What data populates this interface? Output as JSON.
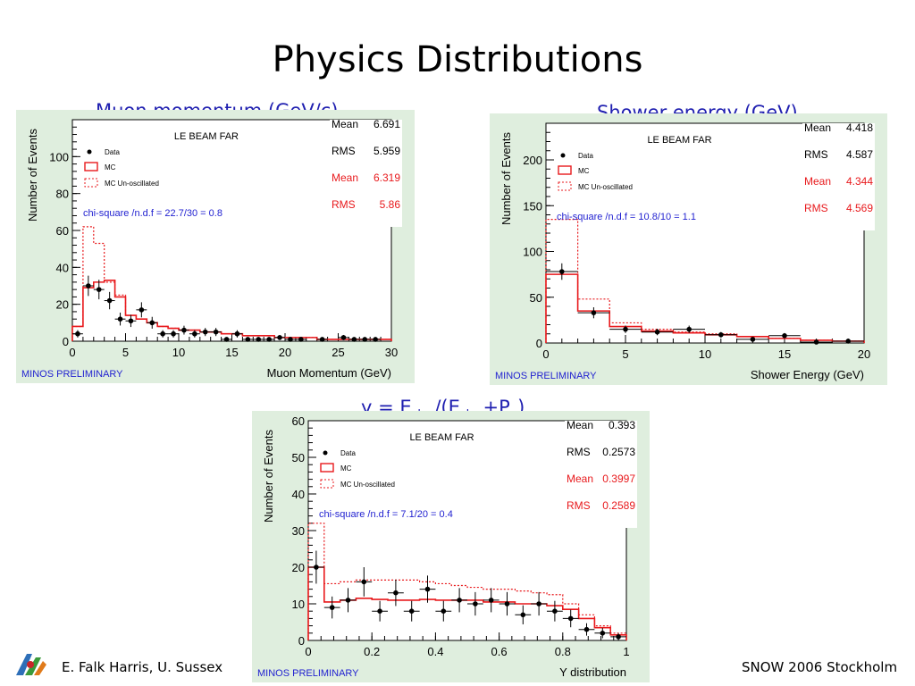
{
  "slide": {
    "title": "Physics Distributions",
    "footer_left": "E. Falk Harris, U. Sussex",
    "footer_right": "SNOW 2006 Stockholm"
  },
  "panels": {
    "muon_title": "Muon momentum (GeV/c)",
    "shower_title": "Shower energy (GeV)",
    "y_title": {
      "y": "y = E",
      "shw1": "shw",
      "mid": "/(E",
      "shw2": "shw",
      "plus": "+P",
      "mu": "μ",
      "close": ")"
    }
  },
  "colors": {
    "data": "#000000",
    "mc": "#e8191c",
    "stat_blue": "#1f1fd0",
    "preliminary": "#1f1fd0",
    "panel_bg": "#dfeede",
    "frame_bg": "#ffffff",
    "title_blue": "#1f1fb0"
  },
  "chart_data": [
    {
      "type": "bar",
      "id": "muon",
      "header": "LE BEAM FAR",
      "preliminary": "MINOS PRELIMINARY",
      "xlabel": "Muon Momentum (GeV)",
      "ylabel": "Number of Events",
      "xlim": [
        0,
        30
      ],
      "ylim": [
        0,
        120
      ],
      "xticks": [
        0,
        5,
        10,
        15,
        20,
        25,
        30
      ],
      "yticks": [
        0,
        20,
        40,
        60,
        80,
        100
      ],
      "legend": [
        "Data",
        "MC",
        "MC Un-oscillated"
      ],
      "chi_square": "chi-square /n.d.f =   22.7/30 =    0.8",
      "stats": [
        {
          "label": "Mean",
          "value": "6.691",
          "color": "black"
        },
        {
          "label": "RMS",
          "value": "5.959",
          "color": "black"
        },
        {
          "label": "Mean",
          "value": "6.319",
          "color": "red"
        },
        {
          "label": "RMS",
          "value": "5.86",
          "color": "red"
        }
      ],
      "bin_edges": [
        0,
        1,
        2,
        3,
        4,
        5,
        6,
        7,
        8,
        9,
        10,
        11,
        12,
        13,
        14,
        15,
        16,
        17,
        18,
        19,
        20,
        21,
        22,
        23,
        24,
        25,
        26,
        27,
        28,
        29,
        30
      ],
      "mc": [
        8,
        29,
        32,
        33,
        24,
        14,
        12,
        10,
        8,
        7,
        6,
        6,
        5,
        5,
        4,
        4,
        3,
        3,
        3,
        2,
        2,
        2,
        2,
        1,
        1,
        1,
        1,
        1,
        1,
        1
      ],
      "mc_unosc": [
        8,
        62,
        53,
        32,
        25,
        14,
        12,
        10,
        8,
        7,
        6,
        6,
        5,
        5,
        4,
        4,
        3,
        3,
        3,
        2,
        2,
        2,
        2,
        1,
        1,
        1,
        1,
        1,
        1,
        1
      ],
      "data_points": [
        {
          "x": 0.5,
          "y": 4,
          "err": 2
        },
        {
          "x": 1.5,
          "y": 30,
          "err": 5.5
        },
        {
          "x": 2.5,
          "y": 28,
          "err": 5.3
        },
        {
          "x": 3.5,
          "y": 22,
          "err": 4.7
        },
        {
          "x": 4.5,
          "y": 12,
          "err": 3.5
        },
        {
          "x": 5.5,
          "y": 11,
          "err": 3.3
        },
        {
          "x": 6.5,
          "y": 17,
          "err": 4.1
        },
        {
          "x": 7.5,
          "y": 10,
          "err": 3.2
        },
        {
          "x": 8.5,
          "y": 4,
          "err": 2
        },
        {
          "x": 9.5,
          "y": 4,
          "err": 2
        },
        {
          "x": 10.5,
          "y": 6,
          "err": 2.4
        },
        {
          "x": 11.5,
          "y": 4,
          "err": 2
        },
        {
          "x": 12.5,
          "y": 5,
          "err": 2.2
        },
        {
          "x": 13.5,
          "y": 5,
          "err": 2.2
        },
        {
          "x": 14.5,
          "y": 1,
          "err": 1
        },
        {
          "x": 15.5,
          "y": 4,
          "err": 2
        },
        {
          "x": 16.5,
          "y": 1,
          "err": 1
        },
        {
          "x": 17.5,
          "y": 1,
          "err": 1
        },
        {
          "x": 18.5,
          "y": 1,
          "err": 1
        },
        {
          "x": 19.5,
          "y": 2,
          "err": 1.4
        },
        {
          "x": 20.5,
          "y": 1,
          "err": 1
        },
        {
          "x": 21.5,
          "y": 1,
          "err": 1
        },
        {
          "x": 23.5,
          "y": 1,
          "err": 1
        },
        {
          "x": 25.5,
          "y": 2,
          "err": 1.4
        },
        {
          "x": 26.5,
          "y": 1,
          "err": 1
        },
        {
          "x": 27.5,
          "y": 1,
          "err": 1
        },
        {
          "x": 28.5,
          "y": 1,
          "err": 1
        }
      ]
    },
    {
      "type": "bar",
      "id": "shower",
      "header": "LE BEAM FAR",
      "preliminary": "MINOS PRELIMINARY",
      "xlabel": "Shower Energy (GeV)",
      "ylabel": "Number of Events",
      "xlim": [
        0,
        20
      ],
      "ylim": [
        0,
        240
      ],
      "xticks": [
        0,
        5,
        10,
        15,
        20
      ],
      "yticks": [
        0,
        50,
        100,
        150,
        200
      ],
      "legend": [
        "Data",
        "MC",
        "MC Un-oscillated"
      ],
      "chi_square": "chi-square /n.d.f =   10.8/10 =    1.1",
      "stats": [
        {
          "label": "Mean",
          "value": "4.418",
          "color": "black"
        },
        {
          "label": "RMS",
          "value": "4.587",
          "color": "black"
        },
        {
          "label": "Mean",
          "value": "4.344",
          "color": "red"
        },
        {
          "label": "RMS",
          "value": "4.569",
          "color": "red"
        }
      ],
      "bin_edges": [
        0,
        2,
        4,
        6,
        8,
        10,
        12,
        14,
        16,
        18,
        20
      ],
      "mc": [
        75,
        35,
        18,
        13,
        11,
        9,
        7,
        5,
        3,
        2
      ],
      "mc_unosc": [
        135,
        48,
        22,
        15,
        12,
        10,
        7,
        5,
        3,
        2
      ],
      "data_points": [
        {
          "x": 1,
          "y": 78,
          "err": 9
        },
        {
          "x": 3,
          "y": 33,
          "err": 6
        },
        {
          "x": 5,
          "y": 15,
          "err": 4
        },
        {
          "x": 7,
          "y": 12,
          "err": 3.5
        },
        {
          "x": 9,
          "y": 15,
          "err": 4
        },
        {
          "x": 11,
          "y": 9,
          "err": 3
        },
        {
          "x": 13,
          "y": 4,
          "err": 2
        },
        {
          "x": 15,
          "y": 8,
          "err": 2.8
        },
        {
          "x": 17,
          "y": 1,
          "err": 1
        },
        {
          "x": 19,
          "y": 2,
          "err": 1.4
        }
      ]
    },
    {
      "type": "bar",
      "id": "ydist",
      "header": "LE BEAM FAR",
      "preliminary": "MINOS PRELIMINARY",
      "xlabel": "Y distribution",
      "ylabel": "Number of Events",
      "xlim": [
        0,
        1
      ],
      "ylim": [
        0,
        60
      ],
      "xticks": [
        0,
        0.2,
        0.4,
        0.6,
        0.8,
        1
      ],
      "yticks": [
        0,
        10,
        20,
        30,
        40,
        50,
        60
      ],
      "legend": [
        "Data",
        "MC",
        "MC Un-oscillated"
      ],
      "chi_square": "chi-square /n.d.f =    7.1/20 =    0.4",
      "stats": [
        {
          "label": "Mean",
          "value": "0.393",
          "color": "black"
        },
        {
          "label": "RMS",
          "value": "0.2573",
          "color": "black"
        },
        {
          "label": "Mean",
          "value": "0.3997",
          "color": "red"
        },
        {
          "label": "RMS",
          "value": "0.2589",
          "color": "red"
        }
      ],
      "bin_edges": [
        0,
        0.05,
        0.1,
        0.15,
        0.2,
        0.25,
        0.3,
        0.35,
        0.4,
        0.45,
        0.5,
        0.55,
        0.6,
        0.65,
        0.7,
        0.75,
        0.8,
        0.85,
        0.9,
        0.95,
        1
      ],
      "mc": [
        20,
        10.5,
        11,
        11.5,
        11.2,
        11,
        11,
        11.2,
        11,
        11,
        11,
        10.5,
        10.5,
        10,
        10,
        9.5,
        8.5,
        6,
        3.5,
        1.5
      ],
      "mc_unosc": [
        32,
        15.5,
        16,
        16.5,
        16.5,
        16.5,
        16.5,
        16,
        15.5,
        15,
        14.5,
        14,
        14,
        13.5,
        13,
        12.5,
        10,
        7,
        4,
        2
      ],
      "data_points": [
        {
          "x": 0.025,
          "y": 20,
          "err": 4.5
        },
        {
          "x": 0.075,
          "y": 9,
          "err": 3
        },
        {
          "x": 0.125,
          "y": 11,
          "err": 3.3
        },
        {
          "x": 0.175,
          "y": 16,
          "err": 4
        },
        {
          "x": 0.225,
          "y": 8,
          "err": 2.8
        },
        {
          "x": 0.275,
          "y": 13,
          "err": 3.6
        },
        {
          "x": 0.325,
          "y": 8,
          "err": 2.8
        },
        {
          "x": 0.375,
          "y": 14,
          "err": 3.7
        },
        {
          "x": 0.425,
          "y": 8,
          "err": 2.8
        },
        {
          "x": 0.475,
          "y": 11,
          "err": 3.3
        },
        {
          "x": 0.525,
          "y": 10,
          "err": 3.2
        },
        {
          "x": 0.575,
          "y": 11,
          "err": 3.3
        },
        {
          "x": 0.625,
          "y": 10,
          "err": 3.2
        },
        {
          "x": 0.675,
          "y": 7,
          "err": 2.6
        },
        {
          "x": 0.725,
          "y": 10,
          "err": 3.2
        },
        {
          "x": 0.775,
          "y": 8,
          "err": 2.8
        },
        {
          "x": 0.825,
          "y": 6,
          "err": 2.4
        },
        {
          "x": 0.875,
          "y": 3,
          "err": 1.7
        },
        {
          "x": 0.925,
          "y": 2,
          "err": 1.4
        },
        {
          "x": 0.975,
          "y": 1,
          "err": 1
        }
      ]
    }
  ]
}
